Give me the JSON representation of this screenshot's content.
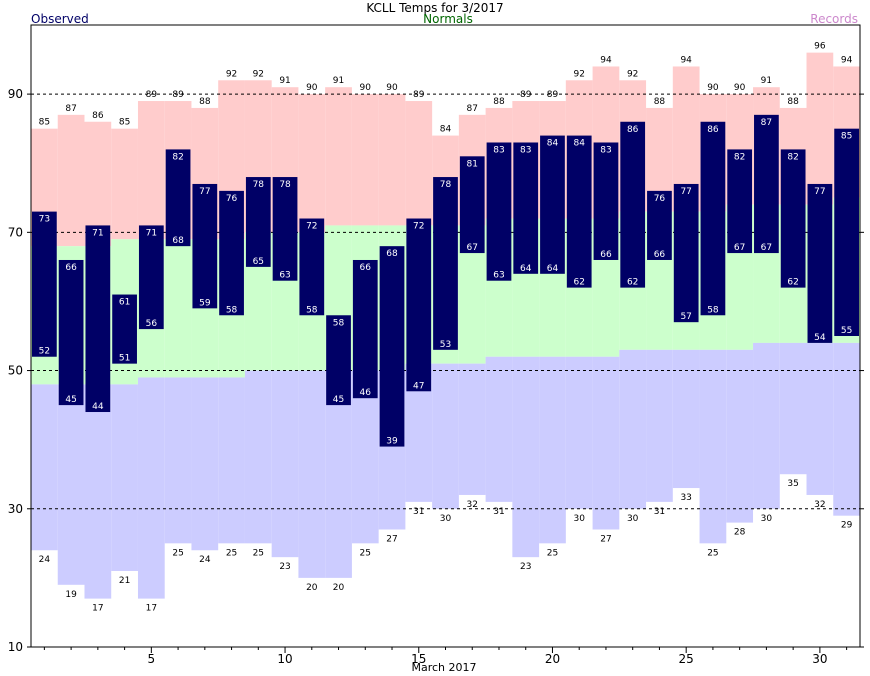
{
  "chart_data": {
    "type": "bar",
    "title": "KCLL Temps for  3/2017",
    "legend": {
      "observed": "Observed",
      "normals": "Normals",
      "records": "Records"
    },
    "xlabel": "March 2017",
    "x_ticks": [
      5,
      10,
      15,
      20,
      25,
      30
    ],
    "y_ticks": [
      10,
      30,
      50,
      70,
      90
    ],
    "ylim": [
      10,
      100
    ],
    "xlim": [
      0.5,
      31.5
    ],
    "grid": "dashed horizontal at 30, 50, 70, 90",
    "colors": {
      "observed": "#000066",
      "observed_text": "#ffffff",
      "normal_band": "#ccffcc",
      "record_high": "#ffcccc",
      "record_low": "#ccccff",
      "title_observed": "#000066",
      "title_normals": "#006600",
      "title_records": "#cc88cc"
    },
    "days": [
      1,
      2,
      3,
      4,
      5,
      6,
      7,
      8,
      9,
      10,
      11,
      12,
      13,
      14,
      15,
      16,
      17,
      18,
      19,
      20,
      21,
      22,
      23,
      24,
      25,
      26,
      27,
      28,
      29,
      30,
      31
    ],
    "observed_high": [
      73,
      66,
      71,
      61,
      71,
      82,
      77,
      76,
      78,
      78,
      72,
      58,
      66,
      68,
      72,
      78,
      81,
      83,
      83,
      84,
      84,
      83,
      86,
      76,
      77,
      86,
      82,
      87,
      82,
      77,
      85
    ],
    "observed_low": [
      52,
      45,
      44,
      51,
      56,
      68,
      59,
      58,
      65,
      63,
      58,
      45,
      46,
      39,
      47,
      53,
      67,
      63,
      64,
      64,
      62,
      66,
      62,
      66,
      57,
      58,
      67,
      67,
      62,
      54,
      55
    ],
    "normal_high": [
      68,
      68,
      68,
      69,
      69,
      69,
      69,
      69,
      70,
      70,
      70,
      71,
      71,
      71,
      71,
      71,
      71,
      72,
      72,
      72,
      72,
      72,
      73,
      73,
      73,
      73,
      74,
      74,
      74,
      74,
      75
    ],
    "normal_low": [
      48,
      48,
      48,
      48,
      49,
      49,
      49,
      49,
      50,
      50,
      50,
      50,
      50,
      50,
      51,
      51,
      51,
      52,
      52,
      52,
      52,
      52,
      53,
      53,
      53,
      53,
      53,
      54,
      54,
      54,
      54
    ],
    "record_high": [
      85,
      87,
      86,
      85,
      89,
      89,
      88,
      92,
      92,
      91,
      90,
      91,
      90,
      90,
      89,
      84,
      87,
      88,
      89,
      89,
      92,
      94,
      92,
      88,
      94,
      90,
      90,
      91,
      88,
      96,
      94
    ],
    "record_low": [
      24,
      19,
      17,
      21,
      17,
      25,
      24,
      25,
      25,
      23,
      20,
      20,
      25,
      27,
      31,
      30,
      32,
      31,
      23,
      25,
      30,
      27,
      30,
      31,
      33,
      25,
      28,
      30,
      35,
      32,
      29
    ]
  }
}
